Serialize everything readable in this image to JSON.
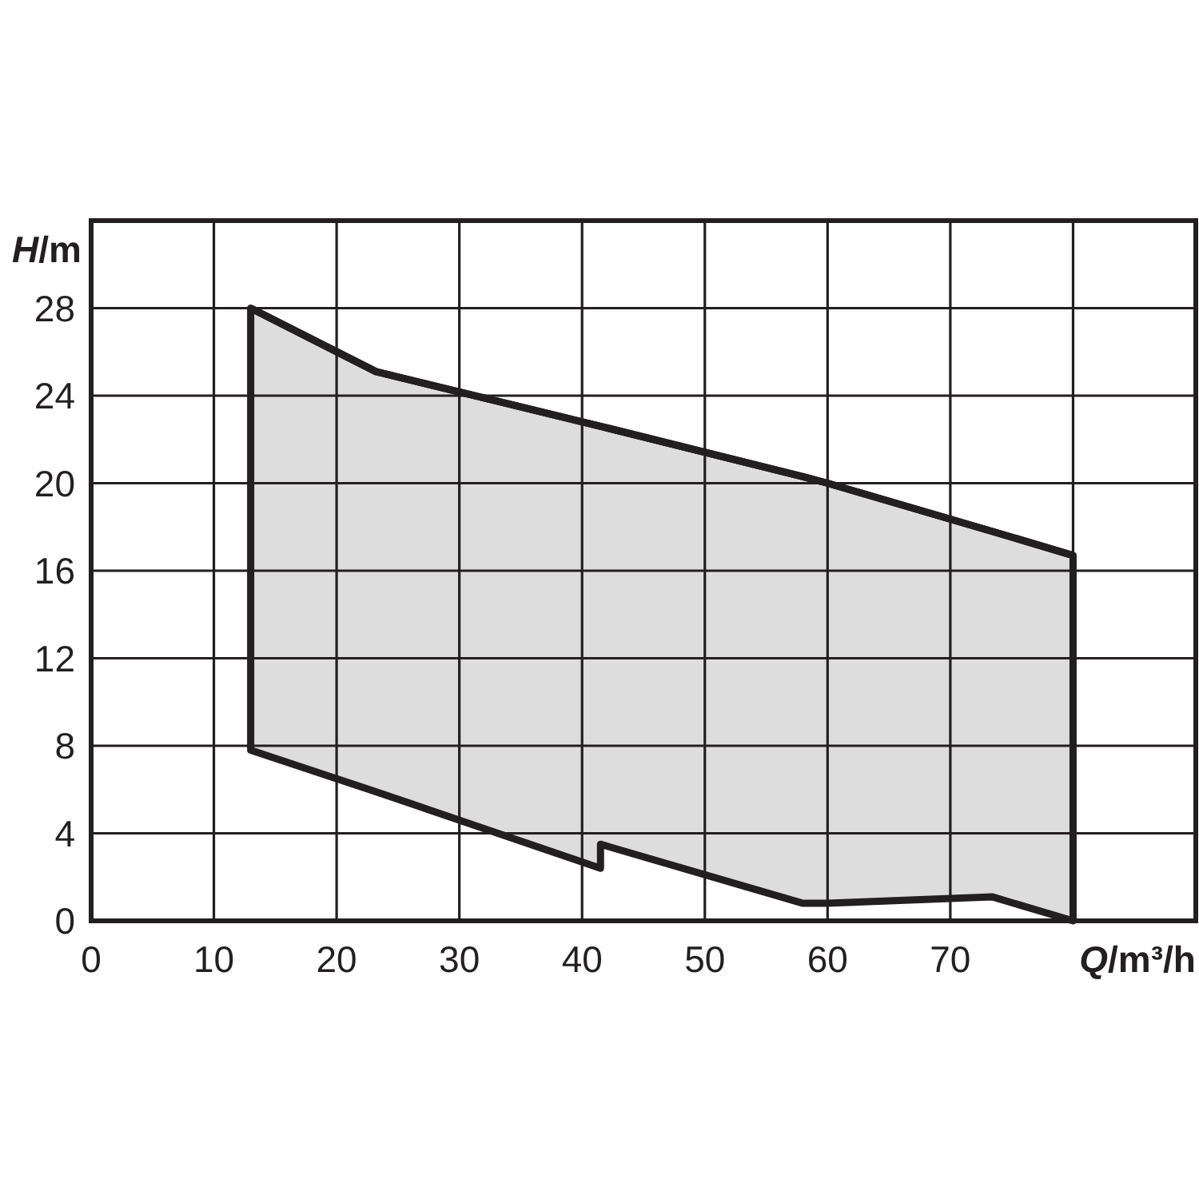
{
  "chart_data": {
    "type": "line",
    "xlabel": "Q/m³/h",
    "ylabel": "H/m",
    "xlim": [
      0,
      90
    ],
    "ylim": [
      0,
      32
    ],
    "xticks": [
      0,
      10,
      20,
      30,
      40,
      50,
      60,
      70,
      {
        "value": 80,
        "label": null
      }
    ],
    "yticks": [
      0,
      4,
      8,
      12,
      16,
      20,
      24,
      28
    ],
    "grid": true,
    "marker": "none",
    "line_style": "solid",
    "series": [
      {
        "color": "#231f20",
        "x": [
          13,
          23.2,
          41.5,
          41.5,
          58,
          60,
          73.4,
          80
        ],
        "values": [
          28,
          25.1,
          22.6,
          22.6,
          20.3,
          20,
          17.8,
          16.7
        ],
        "upper": [
          28,
          25.1,
          22.6,
          22.6,
          20.3,
          20,
          17.8,
          16.7
        ],
        "lower": [
          7.8,
          5.9,
          2.4,
          3.5,
          0.8,
          0.8,
          1.1,
          0
        ]
      }
    ]
  }
}
